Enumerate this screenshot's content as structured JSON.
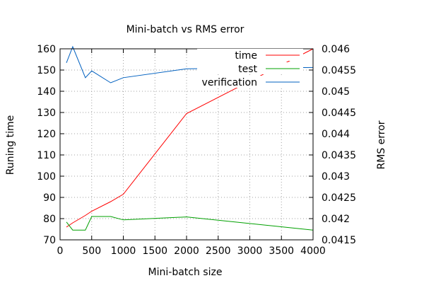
{
  "chart_data": {
    "type": "line",
    "title": "Mini-batch vs RMS error",
    "xlabel": "Mini-batch size",
    "ylabel": "Runing time",
    "y2label": "RMS error",
    "xlim": [
      0,
      4000
    ],
    "ylim": [
      70,
      160
    ],
    "y2lim": [
      0.0415,
      0.046
    ],
    "x_ticks": [
      "0",
      "500",
      "1000",
      "1500",
      "2000",
      "2500",
      "3000",
      "3500",
      "4000"
    ],
    "y_ticks": [
      "70",
      "80",
      "90",
      "100",
      "110",
      "120",
      "130",
      "140",
      "150",
      "160"
    ],
    "y2_ticks": [
      "0.0415",
      "0.042",
      "0.0425",
      "0.043",
      "0.0435",
      "0.044",
      "0.0445",
      "0.045",
      "0.0455",
      "0.046"
    ],
    "grid": true,
    "legend_position": "top-right",
    "series": [
      {
        "name": "time",
        "axis": "left",
        "color": "#ff0000",
        "x": [
          100,
          200,
          400,
          500,
          800,
          1000,
          2000,
          4000
        ],
        "y": [
          76,
          78,
          81.5,
          83.5,
          88,
          91.5,
          129.5,
          160
        ]
      },
      {
        "name": "test",
        "axis": "right",
        "color": "#00a000",
        "x": [
          100,
          200,
          400,
          500,
          800,
          1000,
          2000,
          4000
        ],
        "y": [
          0.04192,
          0.04173,
          0.04173,
          0.04205,
          0.04205,
          0.04197,
          0.04204,
          0.04173
        ]
      },
      {
        "name": "verification",
        "axis": "right",
        "color": "#0060c0",
        "x": [
          100,
          200,
          400,
          500,
          800,
          1000,
          2000,
          4000
        ],
        "y": [
          0.04567,
          0.04605,
          0.04532,
          0.04548,
          0.0452,
          0.04532,
          0.04553,
          0.04556
        ]
      }
    ]
  }
}
